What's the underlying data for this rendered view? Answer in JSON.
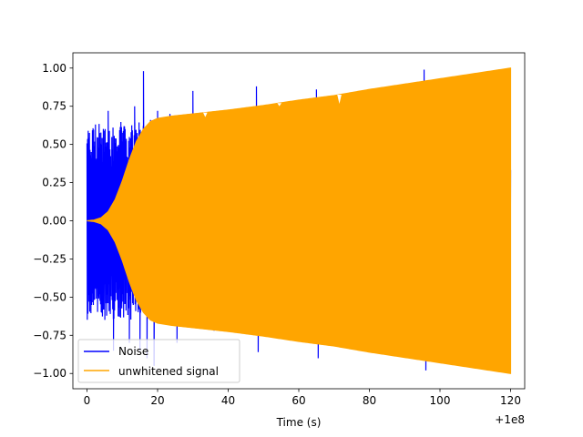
{
  "chart_data": {
    "type": "line",
    "title": "",
    "xlabel": "Time (s)",
    "ylabel": "",
    "x_offset_label": "+1e8",
    "xlim": [
      -4,
      124
    ],
    "ylim": [
      -1.1,
      1.1
    ],
    "xticks": [
      0,
      20,
      40,
      60,
      80,
      100,
      120
    ],
    "xtick_labels": [
      "0",
      "20",
      "40",
      "60",
      "80",
      "100",
      "120"
    ],
    "yticks": [
      -1.0,
      -0.75,
      -0.5,
      -0.25,
      0.0,
      0.25,
      0.5,
      0.75,
      1.0
    ],
    "ytick_labels": [
      "−1.00",
      "−0.75",
      "−0.50",
      "−0.25",
      "0.00",
      "0.25",
      "0.50",
      "0.75",
      "1.00"
    ],
    "grid": false,
    "legend_position": "lower-left",
    "series": [
      {
        "name": "Noise",
        "color": "#0000ff",
        "kind": "noise-envelope",
        "x_range": [
          0,
          120
        ],
        "base_amplitude": 0.6,
        "spikes": [
          {
            "x": 0.3,
            "y": 0.4
          },
          {
            "x": 1.0,
            "y": -0.45
          },
          {
            "x": 1.6,
            "y": 0.42
          },
          {
            "x": 3.0,
            "y": 0.46
          },
          {
            "x": 4.5,
            "y": -0.5
          },
          {
            "x": 6.0,
            "y": 0.72
          },
          {
            "x": 7.5,
            "y": -0.85
          },
          {
            "x": 9.0,
            "y": 0.48
          },
          {
            "x": 10.5,
            "y": 0.62
          },
          {
            "x": 12.0,
            "y": -0.8
          },
          {
            "x": 13.5,
            "y": 0.75
          },
          {
            "x": 15.0,
            "y": -0.85
          },
          {
            "x": 16.0,
            "y": 0.98
          },
          {
            "x": 17.0,
            "y": -0.9
          },
          {
            "x": 18.0,
            "y": 0.66
          },
          {
            "x": 19.0,
            "y": -0.95
          },
          {
            "x": 20.0,
            "y": 0.72
          },
          {
            "x": 23.5,
            "y": 0.7
          },
          {
            "x": 25.5,
            "y": -0.8
          },
          {
            "x": 30.0,
            "y": 0.85
          },
          {
            "x": 36.0,
            "y": -0.72
          },
          {
            "x": 48.0,
            "y": 0.88
          },
          {
            "x": 48.5,
            "y": -0.86
          },
          {
            "x": 54.0,
            "y": 0.74
          },
          {
            "x": 65.0,
            "y": 0.86
          },
          {
            "x": 65.5,
            "y": -0.9
          },
          {
            "x": 72.0,
            "y": 0.82
          },
          {
            "x": 72.5,
            "y": -0.82
          },
          {
            "x": 86.0,
            "y": 0.78
          },
          {
            "x": 86.5,
            "y": -0.82
          },
          {
            "x": 95.5,
            "y": 0.99
          },
          {
            "x": 96.0,
            "y": -0.98
          },
          {
            "x": 103.0,
            "y": 0.9
          },
          {
            "x": 103.5,
            "y": -0.94
          }
        ]
      },
      {
        "name": "unwhitened signal",
        "color": "#ffa500",
        "kind": "chirp-envelope",
        "x_range": [
          0,
          120
        ],
        "envelope": [
          [
            0,
            0.0
          ],
          [
            2,
            0.005
          ],
          [
            4,
            0.02
          ],
          [
            6,
            0.06
          ],
          [
            8,
            0.14
          ],
          [
            10,
            0.26
          ],
          [
            12,
            0.4
          ],
          [
            14,
            0.52
          ],
          [
            16,
            0.6
          ],
          [
            18,
            0.65
          ],
          [
            20,
            0.67
          ],
          [
            24,
            0.685
          ],
          [
            30,
            0.7
          ],
          [
            40,
            0.725
          ],
          [
            50,
            0.755
          ],
          [
            60,
            0.79
          ],
          [
            70,
            0.82
          ],
          [
            80,
            0.86
          ],
          [
            90,
            0.895
          ],
          [
            100,
            0.93
          ],
          [
            110,
            0.965
          ],
          [
            120,
            1.0
          ]
        ]
      }
    ]
  }
}
